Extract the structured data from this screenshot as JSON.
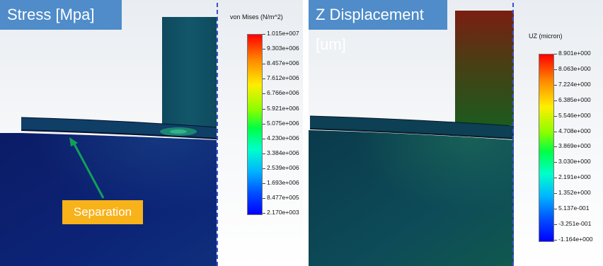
{
  "stress_panel": {
    "title": "Stress [Mpa]",
    "legend_title": "von Mises (N/m^2)",
    "ticks": [
      "1.015e+007",
      "9.303e+006",
      "8.457e+006",
      "7.612e+006",
      "6.766e+006",
      "5.921e+006",
      "5.075e+006",
      "4.230e+006",
      "3.384e+006",
      "2.539e+006",
      "1.693e+006",
      "8.477e+005",
      "2.170e+003"
    ],
    "annotation": "Separation",
    "arrow_color": "#11a05a"
  },
  "displacement_panel": {
    "title": "Z Displacement [um]",
    "legend_title": "UZ (micron)",
    "ticks": [
      "8.901e+000",
      "8.063e+000",
      "7.224e+000",
      "6.385e+000",
      "5.546e+000",
      "4.708e+000",
      "3.869e+000",
      "3.030e+000",
      "2.191e+000",
      "1.352e+000",
      "5.137e-001",
      "-3.251e-001",
      "-1.164e+000"
    ]
  },
  "colors": {
    "title_box": "#4f8cc9",
    "callout": "#f8b21a",
    "stress_body": "#0a1e6a",
    "displacement_body": "#0c4a56",
    "symmetry_line": "#3a4fc7"
  }
}
